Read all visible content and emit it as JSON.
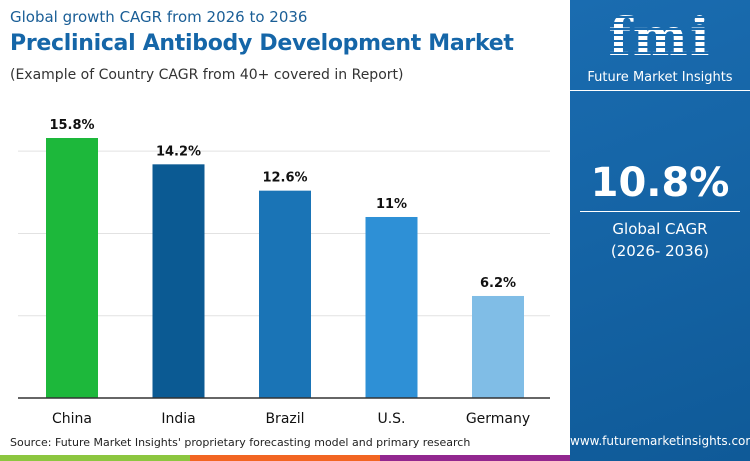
{
  "header": {
    "subtitle": "Global growth CAGR from 2026 to 2036",
    "title": "Preclinical Antibody Development Market",
    "note": "(Example of Country CAGR from 40+ covered in Report)"
  },
  "side": {
    "logo_text": "fmi",
    "brand": "Future Market Insights",
    "cagr": "10.8%",
    "cagr_label": "Global CAGR",
    "cagr_period": "(2026- 2036)",
    "url": "www.futuremarketinsights.com"
  },
  "source": "Source: Future Market Insights' proprietary forecasting model and primary research",
  "colors": {
    "panel": "#1566a8",
    "stripes": [
      "#8cc63f",
      "#f26522",
      "#92278f"
    ]
  },
  "chart_data": {
    "type": "bar",
    "categories": [
      "China",
      "India",
      "Brazil",
      "U.S.",
      "Germany"
    ],
    "values": [
      15.8,
      14.2,
      12.6,
      11,
      6.2
    ],
    "labels": [
      "15.8%",
      "14.2%",
      "12.6%",
      "11%",
      "6.2%"
    ],
    "colors": [
      "#1db83b",
      "#0b5a93",
      "#1a74b6",
      "#2e90d6",
      "#80bde6"
    ],
    "ylim": [
      0,
      16
    ],
    "grid": true,
    "gridlines": [
      5,
      10,
      15
    ]
  }
}
